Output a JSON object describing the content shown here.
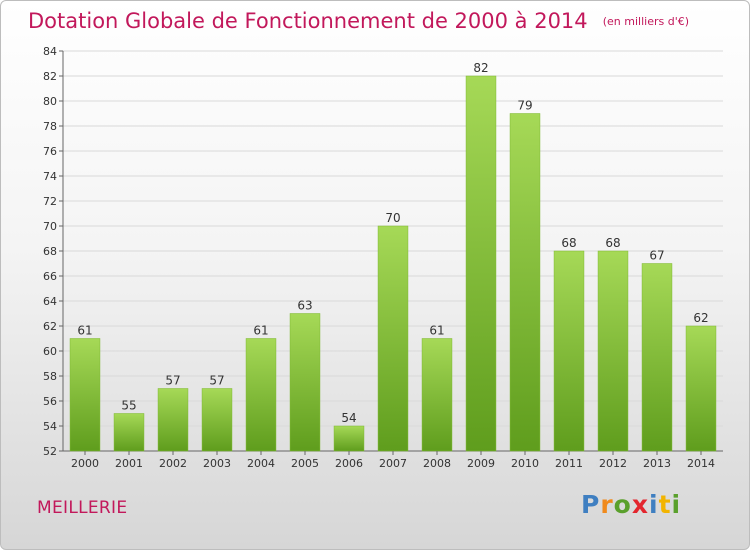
{
  "header": {
    "title": "Dotation Globale de Fonctionnement de 2000 à 2014",
    "unit": "(en milliers d'€)"
  },
  "commune": "MEILLERIE",
  "logo": {
    "text": "Proxiti",
    "letter_colors": [
      "#3f7fc1",
      "#f08a1c",
      "#5aa02c",
      "#e3262e",
      "#3f7fc1",
      "#f2b400",
      "#5aa02c"
    ]
  },
  "colors": {
    "title": "#c2185b",
    "bar_light": "#a6d957",
    "bar_dark": "#5f9d1d",
    "grid": "#d9d9d9"
  },
  "chart_data": {
    "type": "bar",
    "title": "Dotation Globale de Fonctionnement de 2000 à 2014",
    "subtitle": "(en milliers d'€)",
    "categories": [
      "2000",
      "2001",
      "2002",
      "2003",
      "2004",
      "2005",
      "2006",
      "2007",
      "2008",
      "2009",
      "2010",
      "2011",
      "2012",
      "2013",
      "2014"
    ],
    "values": [
      61,
      55,
      57,
      57,
      61,
      63,
      54,
      70,
      61,
      82,
      79,
      68,
      68,
      67,
      62
    ],
    "ylim": [
      52,
      84
    ],
    "yticks": [
      52,
      54,
      56,
      58,
      60,
      62,
      64,
      66,
      68,
      70,
      72,
      74,
      76,
      78,
      80,
      82,
      84
    ],
    "grid": true,
    "xlabel": "",
    "ylabel": ""
  }
}
